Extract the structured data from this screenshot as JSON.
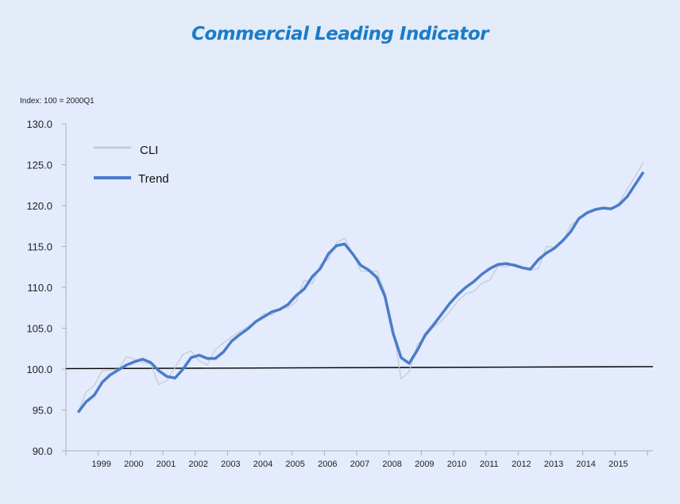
{
  "title": "Commercial Leading Indicator",
  "chart_data": {
    "type": "line",
    "title": "Commercial Leading Indicator",
    "index_note": "Index: 100 = 2000Q1",
    "xlabel": "",
    "ylabel": "",
    "ylim": [
      90,
      130
    ],
    "yticks": [
      "90.0",
      "95.0",
      "100.0",
      "105.0",
      "110.0",
      "115.0",
      "120.0",
      "125.0",
      "130.0"
    ],
    "xticks": [
      "1999",
      "2000",
      "2001",
      "2002",
      "2003",
      "2004",
      "2005",
      "2006",
      "2007",
      "2008",
      "2009",
      "2010",
      "2011",
      "2012",
      "2013",
      "2014",
      "2015"
    ],
    "x": [
      "1998Q2",
      "1998Q3",
      "1998Q4",
      "1999Q1",
      "1999Q2",
      "1999Q3",
      "1999Q4",
      "2000Q1",
      "2000Q2",
      "2000Q3",
      "2000Q4",
      "2001Q1",
      "2001Q2",
      "2001Q3",
      "2001Q4",
      "2002Q1",
      "2002Q2",
      "2002Q3",
      "2002Q4",
      "2003Q1",
      "2003Q2",
      "2003Q3",
      "2003Q4",
      "2004Q1",
      "2004Q2",
      "2004Q3",
      "2004Q4",
      "2005Q1",
      "2005Q2",
      "2005Q3",
      "2005Q4",
      "2006Q1",
      "2006Q2",
      "2006Q3",
      "2006Q4",
      "2007Q1",
      "2007Q2",
      "2007Q3",
      "2007Q4",
      "2008Q1",
      "2008Q2",
      "2008Q3",
      "2008Q4",
      "2009Q1",
      "2009Q2",
      "2009Q3",
      "2009Q4",
      "2010Q1",
      "2010Q2",
      "2010Q3",
      "2010Q4",
      "2011Q1",
      "2011Q2",
      "2011Q3",
      "2011Q4",
      "2012Q1",
      "2012Q2",
      "2012Q3",
      "2012Q4",
      "2013Q1",
      "2013Q2",
      "2013Q3",
      "2013Q4",
      "2014Q1",
      "2014Q2",
      "2014Q3",
      "2014Q4",
      "2015Q1",
      "2015Q2",
      "2015Q3",
      "2015Q4"
    ],
    "series": [
      {
        "name": "CLI",
        "color": "#c3c9d3",
        "values": [
          94.7,
          97.2,
          98.0,
          99.8,
          99.9,
          100.0,
          101.5,
          101.2,
          100.8,
          100.6,
          98.1,
          98.6,
          100.2,
          101.8,
          102.2,
          101.0,
          100.5,
          102.4,
          103.2,
          103.9,
          104.6,
          105.2,
          105.8,
          106.8,
          106.6,
          107.5,
          107.5,
          108.2,
          110.9,
          110.4,
          112.8,
          113.4,
          115.5,
          116.0,
          114.2,
          112.0,
          111.9,
          112.0,
          109.4,
          105.0,
          98.8,
          99.7,
          103.0,
          103.9,
          105.1,
          105.9,
          107.0,
          108.3,
          109.2,
          109.5,
          110.5,
          110.9,
          112.6,
          112.5,
          112.9,
          112.5,
          112.1,
          112.3,
          115.0,
          114.9,
          115.5,
          117.6,
          118.3,
          119.1,
          119.6,
          119.7,
          119.5,
          120.4,
          122.0,
          123.6,
          125.3
        ]
      },
      {
        "name": "Trend",
        "color": "#4a7cc9",
        "values": [
          94.7,
          96.0,
          96.8,
          98.4,
          99.3,
          99.9,
          100.5,
          100.9,
          101.2,
          100.8,
          99.8,
          99.1,
          98.9,
          100.0,
          101.4,
          101.7,
          101.3,
          101.3,
          102.1,
          103.4,
          104.2,
          104.9,
          105.8,
          106.4,
          107.0,
          107.3,
          107.9,
          109.0,
          109.8,
          111.3,
          112.3,
          114.1,
          115.1,
          115.3,
          114.1,
          112.7,
          112.1,
          111.2,
          108.9,
          104.4,
          101.4,
          100.7,
          102.3,
          104.2,
          105.4,
          106.7,
          108.0,
          109.1,
          110.0,
          110.7,
          111.6,
          112.3,
          112.8,
          112.9,
          112.7,
          112.4,
          112.2,
          113.4,
          114.2,
          114.8,
          115.7,
          116.8,
          118.4,
          119.1,
          119.5,
          119.7,
          119.6,
          120.1,
          121.1,
          122.6,
          124.1
        ]
      }
    ],
    "reference_line": {
      "color": "#000000",
      "values": [
        100.05,
        100.3
      ]
    },
    "legend": {
      "position": "top-left",
      "entries": [
        "CLI",
        "Trend"
      ]
    },
    "grid": false
  }
}
